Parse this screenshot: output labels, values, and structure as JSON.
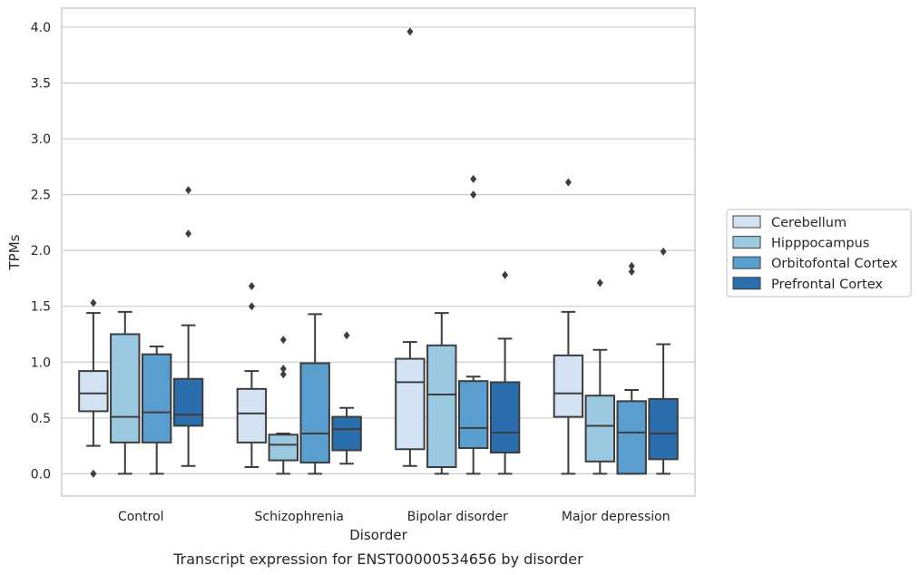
{
  "chart_data": {
    "type": "box",
    "xlabel": "Disorder",
    "ylabel": "TPMs",
    "caption": "Transcript expression for ENST00000534656 by disorder",
    "categories": [
      "Control",
      "Schizophrenia",
      "Bipolar disorder",
      "Major depression"
    ],
    "ylim": [
      -0.2,
      4.17
    ],
    "yticks": [
      "0.0",
      "0.5",
      "1.0",
      "1.5",
      "2.0",
      "2.5",
      "3.0",
      "3.5",
      "4.0"
    ],
    "grid": "horizontal",
    "legend_position": "right",
    "series": [
      {
        "name": "Cerebellum",
        "color": "#d3e3f3",
        "boxes": [
          {
            "whislo": 0.25,
            "q1": 0.56,
            "med": 0.72,
            "q3": 0.92,
            "whishi": 1.44,
            "fliers": [
              1.53,
              0.0
            ]
          },
          {
            "whislo": 0.06,
            "q1": 0.28,
            "med": 0.54,
            "q3": 0.76,
            "whishi": 0.92,
            "fliers": [
              1.68,
              1.5
            ]
          },
          {
            "whislo": 0.07,
            "q1": 0.22,
            "med": 0.82,
            "q3": 1.03,
            "whishi": 1.18,
            "fliers": [
              3.96
            ]
          },
          {
            "whislo": 0.0,
            "q1": 0.51,
            "med": 0.72,
            "q3": 1.06,
            "whishi": 1.45,
            "fliers": [
              2.61
            ]
          }
        ]
      },
      {
        "name": "Hipppocampus",
        "color": "#9ac8e0",
        "boxes": [
          {
            "whislo": 0.0,
            "q1": 0.28,
            "med": 0.51,
            "q3": 1.25,
            "whishi": 1.45,
            "fliers": []
          },
          {
            "whislo": 0.0,
            "q1": 0.12,
            "med": 0.26,
            "q3": 0.35,
            "whishi": 0.36,
            "fliers": [
              1.2,
              0.94,
              0.89
            ]
          },
          {
            "whislo": 0.0,
            "q1": 0.06,
            "med": 0.71,
            "q3": 1.15,
            "whishi": 1.44,
            "fliers": []
          },
          {
            "whislo": 0.0,
            "q1": 0.11,
            "med": 0.43,
            "q3": 0.7,
            "whishi": 1.11,
            "fliers": [
              1.71
            ]
          }
        ]
      },
      {
        "name": "Orbitofontal Cortex",
        "color": "#5a9ecf",
        "boxes": [
          {
            "whislo": 0.0,
            "q1": 0.28,
            "med": 0.55,
            "q3": 1.07,
            "whishi": 1.14,
            "fliers": []
          },
          {
            "whislo": 0.0,
            "q1": 0.1,
            "med": 0.36,
            "q3": 0.99,
            "whishi": 1.43,
            "fliers": []
          },
          {
            "whislo": 0.0,
            "q1": 0.23,
            "med": 0.41,
            "q3": 0.83,
            "whishi": 0.87,
            "fliers": [
              2.64,
              2.5
            ]
          },
          {
            "whislo": 0.0,
            "q1": 0.0,
            "med": 0.37,
            "q3": 0.65,
            "whishi": 0.75,
            "fliers": [
              1.86,
              1.81
            ]
          }
        ]
      },
      {
        "name": "Prefrontal Cortex",
        "color": "#2a6eae",
        "boxes": [
          {
            "whislo": 0.07,
            "q1": 0.43,
            "med": 0.53,
            "q3": 0.85,
            "whishi": 1.33,
            "fliers": [
              2.54,
              2.15
            ]
          },
          {
            "whislo": 0.09,
            "q1": 0.21,
            "med": 0.4,
            "q3": 0.51,
            "whishi": 0.59,
            "fliers": [
              1.24
            ]
          },
          {
            "whislo": 0.0,
            "q1": 0.19,
            "med": 0.37,
            "q3": 0.82,
            "whishi": 1.21,
            "fliers": [
              1.78
            ]
          },
          {
            "whislo": 0.0,
            "q1": 0.13,
            "med": 0.36,
            "q3": 0.67,
            "whishi": 1.16,
            "fliers": [
              1.99
            ]
          }
        ]
      }
    ]
  }
}
